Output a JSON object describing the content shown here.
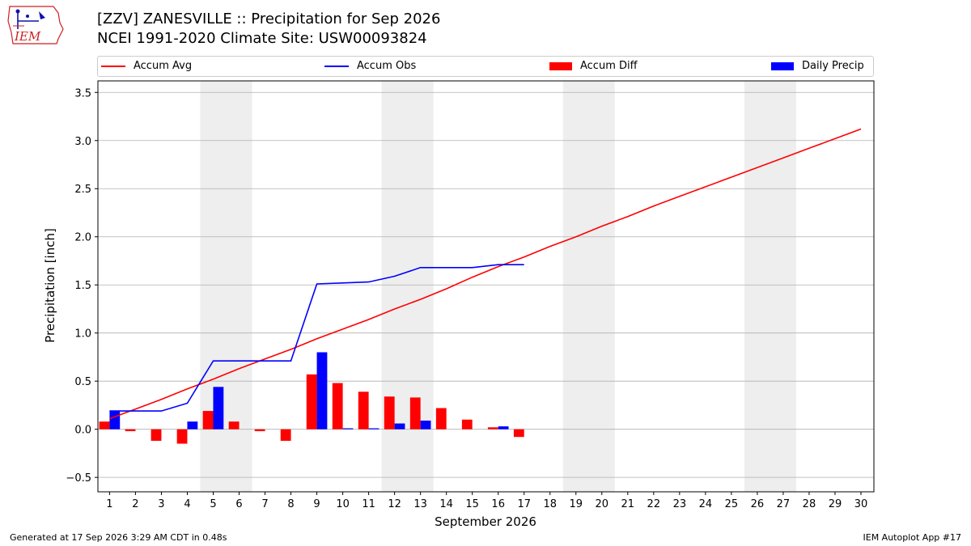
{
  "header": {
    "title_line1": "[ZZV] ZANESVILLE :: Precipitation for Sep 2026",
    "title_line2": "NCEI 1991-2020 Climate Site: USW00093824",
    "logo_text": "IEM"
  },
  "footer": {
    "left": "Generated at 17 Sep 2026 3:29 AM CDT in 0.48s",
    "right": "IEM Autoplot App #17"
  },
  "legend": {
    "accum_avg": "Accum Avg",
    "accum_obs": "Accum Obs",
    "accum_diff": "Accum Diff",
    "daily_precip": "Daily Precip"
  },
  "colors": {
    "accum_avg": "#ff0000",
    "accum_obs": "#0000ff",
    "accum_diff": "#ff0000",
    "daily_precip": "#0000ff",
    "weekend_shade": "#eeeeee",
    "grid": "#b0b0b0"
  },
  "chart_data": {
    "type": "bar",
    "xlabel": "September 2026",
    "ylabel": "Precipitation [inch]",
    "xlim": [
      0.55,
      30.5
    ],
    "ylim": [
      -0.65,
      3.62
    ],
    "grid": true,
    "legend_placement": "top",
    "x_ticks": [
      1,
      2,
      3,
      4,
      5,
      6,
      7,
      8,
      9,
      10,
      11,
      12,
      13,
      14,
      15,
      16,
      17,
      18,
      19,
      20,
      21,
      22,
      23,
      24,
      25,
      26,
      27,
      28,
      29,
      30
    ],
    "y_ticks": [
      -0.5,
      0.0,
      0.5,
      1.0,
      1.5,
      2.0,
      2.5,
      3.0,
      3.5
    ],
    "y_tick_labels": [
      "−0.5",
      "0.0",
      "0.5",
      "1.0",
      "1.5",
      "2.0",
      "2.5",
      "3.0",
      "3.5"
    ],
    "weekend_spans": [
      [
        5,
        6
      ],
      [
        12,
        13
      ],
      [
        19,
        20
      ],
      [
        26,
        27
      ]
    ],
    "series": [
      {
        "name": "Accum Avg",
        "kind": "line",
        "x": [
          1,
          2,
          3,
          4,
          5,
          6,
          7,
          8,
          9,
          10,
          11,
          12,
          13,
          14,
          15,
          16,
          17,
          18,
          19,
          20,
          21,
          22,
          23,
          24,
          25,
          26,
          27,
          28,
          29,
          30
        ],
        "values": [
          0.11,
          0.21,
          0.31,
          0.42,
          0.52,
          0.63,
          0.73,
          0.83,
          0.94,
          1.04,
          1.14,
          1.25,
          1.35,
          1.46,
          1.58,
          1.69,
          1.79,
          1.9,
          2.0,
          2.11,
          2.21,
          2.32,
          2.42,
          2.52,
          2.62,
          2.72,
          2.82,
          2.92,
          3.02,
          3.12
        ]
      },
      {
        "name": "Accum Obs",
        "kind": "line",
        "x": [
          1,
          2,
          3,
          4,
          5,
          6,
          7,
          8,
          9,
          10,
          11,
          12,
          13,
          14,
          15,
          16,
          17
        ],
        "values": [
          0.19,
          0.19,
          0.19,
          0.27,
          0.71,
          0.71,
          0.71,
          0.71,
          1.51,
          1.52,
          1.53,
          1.59,
          1.68,
          1.68,
          1.68,
          1.71,
          1.71
        ]
      },
      {
        "name": "Accum Diff",
        "kind": "bar",
        "x": [
          1,
          2,
          3,
          4,
          5,
          6,
          7,
          8,
          9,
          10,
          11,
          12,
          13,
          14,
          15,
          16,
          17
        ],
        "values": [
          0.08,
          -0.02,
          -0.12,
          -0.15,
          0.19,
          0.08,
          -0.02,
          -0.12,
          0.57,
          0.48,
          0.39,
          0.34,
          0.33,
          0.22,
          0.1,
          0.02,
          -0.08
        ]
      },
      {
        "name": "Daily Precip",
        "kind": "bar",
        "x": [
          1,
          2,
          3,
          4,
          5,
          6,
          7,
          8,
          9,
          10,
          11,
          12,
          13,
          14,
          15,
          16,
          17
        ],
        "values": [
          0.19,
          0.0,
          0.0,
          0.08,
          0.44,
          0.0,
          0.0,
          0.0,
          0.8,
          0.01,
          0.01,
          0.06,
          0.09,
          0.0,
          0.0,
          0.03,
          0.0
        ]
      }
    ]
  }
}
